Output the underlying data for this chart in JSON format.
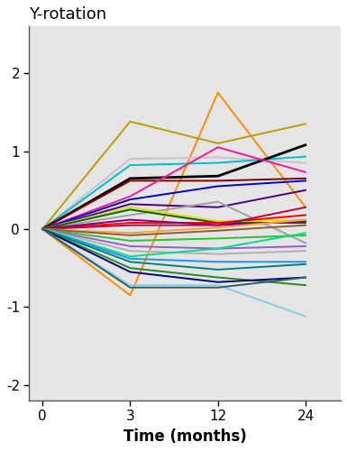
{
  "title": "Y-rotation",
  "xlabel": "Time (months)",
  "ylabel": "",
  "x_positions": [
    0,
    1,
    2,
    3
  ],
  "x_labels": [
    "0",
    "3",
    "12",
    "24"
  ],
  "yticks": [
    -2,
    -1,
    0,
    1,
    2
  ],
  "ylim": [
    -2.2,
    2.6
  ],
  "xlim": [
    -0.15,
    3.4
  ],
  "background_color": "#E5E5E5",
  "fig_bg": "#FFFFFF",
  "lines": [
    {
      "color": "#FF8C00",
      "values": [
        0,
        -0.85,
        1.75,
        0.28
      ],
      "lw": 1.4
    },
    {
      "color": "#B8A000",
      "values": [
        0,
        1.38,
        1.1,
        1.35
      ],
      "lw": 1.4
    },
    {
      "color": "#C8C8C8",
      "values": [
        0,
        0.9,
        0.92,
        0.85
      ],
      "lw": 1.6
    },
    {
      "color": "#00BCD4",
      "values": [
        0,
        0.82,
        0.85,
        0.93
      ],
      "lw": 1.4
    },
    {
      "color": "#000000",
      "values": [
        0,
        0.65,
        0.68,
        1.08
      ],
      "lw": 2.0
    },
    {
      "color": "#800000",
      "values": [
        0,
        0.62,
        0.62,
        0.65
      ],
      "lw": 1.4
    },
    {
      "color": "#FF1493",
      "values": [
        0,
        0.42,
        1.05,
        0.73
      ],
      "lw": 1.4
    },
    {
      "color": "#0000CD",
      "values": [
        0,
        0.38,
        0.55,
        0.62
      ],
      "lw": 1.4
    },
    {
      "color": "#4B0082",
      "values": [
        0,
        0.32,
        0.28,
        0.5
      ],
      "lw": 1.4
    },
    {
      "color": "#A0A0A0",
      "values": [
        0,
        0.18,
        0.35,
        -0.18
      ],
      "lw": 1.4
    },
    {
      "color": "#E0E000",
      "values": [
        0,
        0.28,
        0.1,
        0.12
      ],
      "lw": 1.4
    },
    {
      "color": "#006400",
      "values": [
        0,
        0.25,
        0.08,
        0.08
      ],
      "lw": 1.4
    },
    {
      "color": "#FF0000",
      "values": [
        0,
        0.08,
        0.08,
        0.18
      ],
      "lw": 1.4
    },
    {
      "color": "#800080",
      "values": [
        0,
        0.12,
        0.05,
        0.1
      ],
      "lw": 1.4
    },
    {
      "color": "#C00040",
      "values": [
        0,
        0.05,
        0.05,
        0.28
      ],
      "lw": 1.4
    },
    {
      "color": "#FFA040",
      "values": [
        0,
        -0.05,
        0.02,
        0.12
      ],
      "lw": 1.4
    },
    {
      "color": "#8B6030",
      "values": [
        0,
        -0.08,
        -0.02,
        0.05
      ],
      "lw": 1.4
    },
    {
      "color": "#30C030",
      "values": [
        0,
        -0.15,
        -0.12,
        -0.08
      ],
      "lw": 1.4
    },
    {
      "color": "#9060D0",
      "values": [
        0,
        -0.22,
        -0.25,
        -0.22
      ],
      "lw": 1.4
    },
    {
      "color": "#B0B0B0",
      "values": [
        0,
        -0.28,
        -0.32,
        -0.28
      ],
      "lw": 1.4
    },
    {
      "color": "#00E080",
      "values": [
        0,
        -0.35,
        -0.25,
        -0.05
      ],
      "lw": 1.4
    },
    {
      "color": "#1E90FF",
      "values": [
        0,
        -0.38,
        -0.42,
        -0.42
      ],
      "lw": 1.4
    },
    {
      "color": "#008080",
      "values": [
        0,
        -0.42,
        -0.52,
        -0.45
      ],
      "lw": 1.4
    },
    {
      "color": "#228B22",
      "values": [
        0,
        -0.5,
        -0.62,
        -0.72
      ],
      "lw": 1.4
    },
    {
      "color": "#000080",
      "values": [
        0,
        -0.55,
        -0.68,
        -0.62
      ],
      "lw": 1.4
    },
    {
      "color": "#87CEEB",
      "values": [
        0,
        -0.72,
        -0.72,
        -1.12
      ],
      "lw": 1.4
    },
    {
      "color": "#2F5F5F",
      "values": [
        0,
        -0.75,
        -0.75,
        -0.62
      ],
      "lw": 1.4
    }
  ]
}
